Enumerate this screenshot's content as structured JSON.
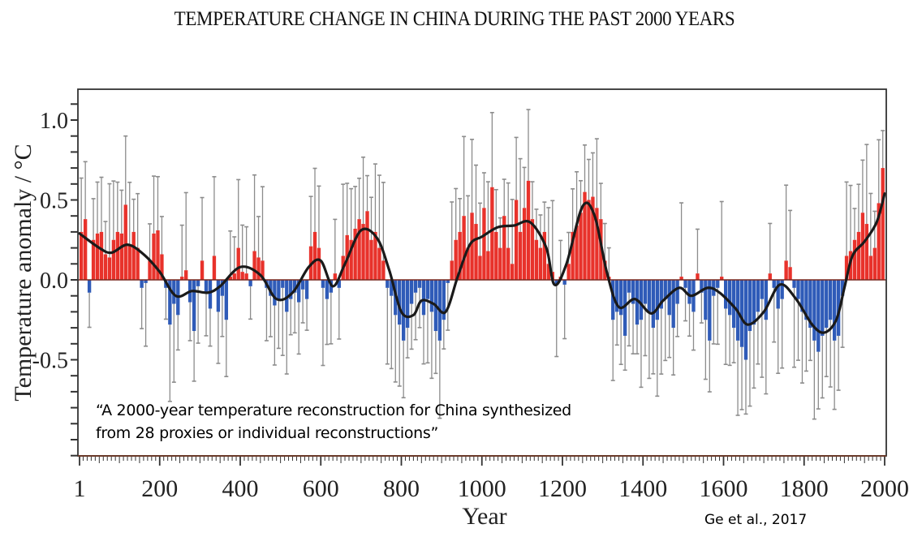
{
  "title": "TEMPERATURE CHANGE IN CHINA DURING THE PAST 2000 YEARS",
  "quote_line1": "“A 2000-year temperature reconstruction for China synthesized",
  "quote_line2": "from 28 proxies or individual reconstructions”",
  "credit": "Ge et al., 2017",
  "colors": {
    "positive": "#e8322b",
    "negative": "#2f5bb8",
    "smooth": "#1a1a1a",
    "errorbar": "#8c8c8c",
    "axis": "#333333",
    "zero_line": "#7a2a20"
  },
  "chart_data": {
    "type": "bar",
    "title": "TEMPERATURE CHANGE IN CHINA DURING THE PAST 2000 YEARS",
    "xlabel": "Year",
    "ylabel": "Temperature anomaly / °C",
    "xlim": [
      1,
      2000
    ],
    "ylim": [
      -1.1,
      1.2
    ],
    "x_ticks": [
      1,
      200,
      400,
      600,
      800,
      1000,
      1200,
      1400,
      1600,
      1800,
      2000
    ],
    "x_tick_labels": [
      "1",
      "200",
      "400",
      "600",
      "800",
      "1000",
      "1200",
      "1400",
      "1600",
      "1800",
      "2000"
    ],
    "y_ticks": [
      1.0,
      0.5,
      0.0,
      -0.5
    ],
    "y_tick_labels": [
      "1.0",
      "0.5",
      "0.0",
      "-0.5"
    ],
    "bin_years": 10,
    "grid": false,
    "legend": "none",
    "series": [
      {
        "name": "Decadal temperature anomaly",
        "bin_start_years": "1,11,21,...,1991 (200 decadal bins)",
        "values": [
          0.3,
          0.38,
          -0.08,
          0.25,
          0.29,
          0.3,
          0.16,
          0.14,
          0.25,
          0.3,
          0.29,
          0.47,
          0.22,
          0.3,
          0.2,
          -0.05,
          -0.02,
          0.12,
          0.29,
          0.31,
          0.16,
          -0.05,
          -0.28,
          -0.15,
          -0.22,
          0.02,
          0.06,
          -0.14,
          -0.32,
          -0.04,
          0.12,
          -0.08,
          -0.18,
          0.15,
          -0.2,
          -0.1,
          -0.25,
          0.02,
          0.04,
          0.2,
          0.05,
          0.04,
          -0.04,
          0.18,
          0.14,
          0.12,
          -0.05,
          -0.1,
          -0.16,
          -0.12,
          -0.05,
          -0.2,
          -0.12,
          -0.08,
          -0.14,
          -0.06,
          -0.12,
          0.21,
          0.3,
          0.2,
          -0.05,
          -0.12,
          -0.08,
          0.04,
          -0.05,
          0.15,
          0.28,
          0.25,
          0.32,
          0.38,
          0.35,
          0.43,
          0.25,
          0.3,
          0.2,
          0.12,
          -0.05,
          -0.1,
          -0.22,
          -0.28,
          -0.38,
          -0.3,
          -0.15,
          -0.08,
          -0.05,
          -0.22,
          -0.12,
          -0.2,
          -0.32,
          -0.38,
          -0.25,
          -0.02,
          0.12,
          0.25,
          0.3,
          0.4,
          0.2,
          0.42,
          0.35,
          0.15,
          0.45,
          0.18,
          0.58,
          0.3,
          0.2,
          0.4,
          0.2,
          0.1,
          0.5,
          0.3,
          0.45,
          0.62,
          0.38,
          0.25,
          0.2,
          0.3,
          0.1,
          0.05,
          -0.03,
          0.02,
          -0.03,
          0.1,
          0.3,
          0.34,
          0.42,
          0.55,
          0.5,
          0.52,
          0.45,
          0.38,
          0.12,
          0.02,
          -0.25,
          -0.2,
          -0.22,
          -0.35,
          -0.08,
          -0.15,
          -0.28,
          -0.25,
          -0.15,
          -0.2,
          -0.3,
          -0.25,
          -0.18,
          -0.12,
          -0.22,
          -0.3,
          -0.15,
          0.02,
          -0.05,
          -0.15,
          -0.2,
          0.04,
          -0.08,
          -0.25,
          -0.38,
          -0.1,
          -0.05,
          0.02,
          -0.18,
          -0.22,
          -0.3,
          -0.38,
          -0.42,
          -0.5,
          -0.32,
          -0.28,
          -0.2,
          -0.12,
          -0.25,
          0.04,
          -0.05,
          -0.18,
          -0.12,
          0.12,
          0.08,
          -0.05,
          -0.12,
          -0.2,
          -0.25,
          -0.3,
          -0.38,
          -0.45,
          -0.35,
          -0.3,
          -0.25,
          -0.38,
          -0.35,
          -0.1,
          0.15,
          0.18,
          0.25,
          0.3,
          0.42,
          0.35,
          0.15,
          0.2,
          0.48,
          0.7
        ],
        "error_half_width_typical": 0.3
      },
      {
        "name": "Smoothed curve",
        "type": "line",
        "x": [
          1,
          50,
          80,
          120,
          160,
          200,
          240,
          280,
          320,
          350,
          400,
          450,
          490,
          530,
          570,
          600,
          630,
          660,
          700,
          740,
          770,
          800,
          830,
          850,
          880,
          910,
          940,
          970,
          1000,
          1040,
          1080,
          1120,
          1160,
          1180,
          1210,
          1250,
          1280,
          1310,
          1340,
          1380,
          1420,
          1450,
          1490,
          1520,
          1560,
          1590,
          1630,
          1660,
          1700,
          1740,
          1780,
          1820,
          1850,
          1880,
          1900,
          1920,
          1950,
          1980,
          2000
        ],
        "y": [
          0.29,
          0.2,
          0.17,
          0.22,
          0.16,
          0.05,
          -0.1,
          -0.07,
          -0.08,
          -0.04,
          0.08,
          0.03,
          -0.12,
          -0.08,
          0.08,
          0.12,
          -0.04,
          0.1,
          0.31,
          0.26,
          0.06,
          -0.2,
          -0.22,
          -0.13,
          -0.15,
          -0.2,
          0.02,
          0.22,
          0.27,
          0.33,
          0.34,
          0.36,
          0.2,
          -0.03,
          0.1,
          0.46,
          0.4,
          0.05,
          -0.17,
          -0.12,
          -0.21,
          -0.13,
          -0.05,
          -0.1,
          -0.05,
          -0.08,
          -0.18,
          -0.28,
          -0.2,
          -0.03,
          -0.12,
          -0.28,
          -0.33,
          -0.25,
          -0.05,
          0.15,
          0.24,
          0.36,
          0.54
        ]
      }
    ]
  }
}
